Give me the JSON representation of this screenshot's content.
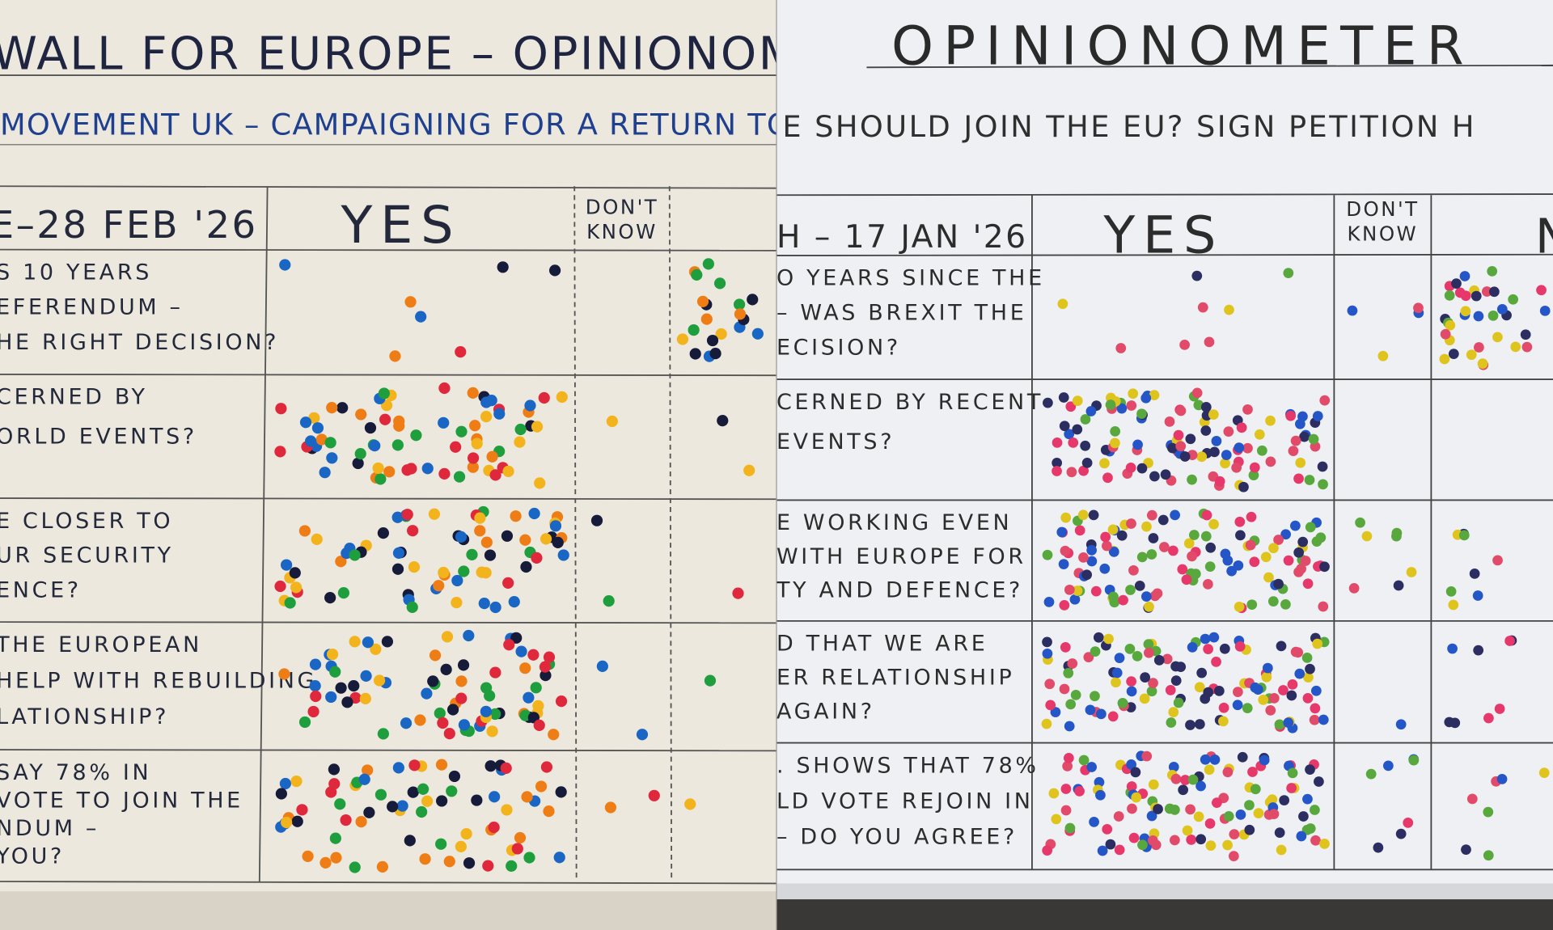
{
  "boards": [
    {
      "title": "WALL FOR EUROPE – OPINIONOMETE",
      "subtitle": "MOVEMENT UK – CAMPAIGNING FOR A RETURN TO THE EU",
      "header": {
        "date": "E–28 FEB '26",
        "yes": "YES",
        "dont_know": [
          "DON'T",
          "KNOW"
        ]
      },
      "questions": [
        [
          "S 10 YEARS",
          "EFERENDUM –",
          "HE RIGHT DECISION?"
        ],
        [
          "CERNED BY",
          "ORLD EVENTS?"
        ],
        [
          "E CLOSER TO",
          "UR SECURITY",
          "ENCE?"
        ],
        [
          "THE EUROPEAN",
          "HELP WITH REBUILDING",
          "LATIONSHIP?"
        ],
        [
          "SAY 78% IN",
          "VOTE TO JOIN THE",
          "NDUM –",
          "YOU?"
        ]
      ]
    },
    {
      "title": "OPINIONOMETER",
      "subtitle": "E SHOULD JOIN THE EU? SIGN PETITION H",
      "header": {
        "date": "H – 17 JAN '26",
        "yes": "YES",
        "dont_know": [
          "DON'T",
          "KNOW"
        ],
        "no": "N"
      },
      "questions": [
        [
          "O YEARS SINCE THE",
          "– WAS BREXIT THE",
          "ECISION?"
        ],
        [
          "CERNED BY RECENT",
          "EVENTS?"
        ],
        [
          "E WORKING EVEN",
          "WITH EUROPE FOR",
          "TY AND DEFENCE?"
        ],
        [
          "D THAT WE ARE",
          "ER RELATIONSHIP",
          "AGAIN?"
        ],
        [
          ". SHOWS THAT 78%",
          "LD VOTE REJOIN IN",
          "– DO YOU AGREE?"
        ]
      ]
    }
  ]
}
